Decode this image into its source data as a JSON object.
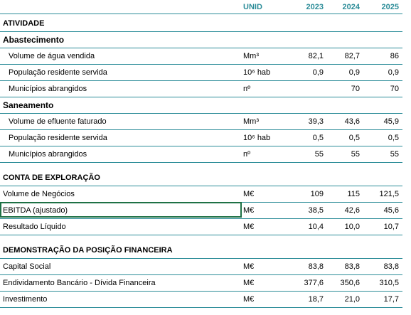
{
  "header": {
    "unit": "UNID",
    "years": [
      "2023",
      "2024",
      "2025"
    ]
  },
  "sections": [
    {
      "title": "ATIVIDADE",
      "groups": [
        {
          "title": "Abastecimento",
          "rows": [
            {
              "label": "Volume de água vendida",
              "unit": "Mm³",
              "values": [
                "82,1",
                "82,7",
                "86"
              ]
            },
            {
              "label": "População residente servida",
              "unit": "10⁶ hab",
              "values": [
                "0,9",
                "0,9",
                "0,9"
              ]
            },
            {
              "label": "Municípios abrangidos",
              "unit": "nº",
              "values": [
                null,
                "70",
                "70"
              ]
            }
          ]
        },
        {
          "title": "Saneamento",
          "rows": [
            {
              "label": "Volume de efluente faturado",
              "unit": "Mm³",
              "values": [
                "39,3",
                "43,6",
                "45,9"
              ]
            },
            {
              "label": "População residente servida",
              "unit": "10⁶ hab",
              "values": [
                "0,5",
                "0,5",
                "0,5"
              ]
            },
            {
              "label": "Municípios abrangidos",
              "unit": "nº",
              "values": [
                "55",
                "55",
                "55"
              ]
            }
          ]
        }
      ]
    },
    {
      "title": "CONTA DE EXPLORAÇÃO",
      "rows": [
        {
          "label": "Volume de Negócios",
          "unit": "M€",
          "values": [
            "109",
            "115",
            "121,5"
          ]
        },
        {
          "label": "EBITDA (ajustado)",
          "unit": "M€",
          "values": [
            "38,5",
            "42,6",
            "45,6"
          ]
        },
        {
          "label": "Resultado Líquido",
          "unit": "M€",
          "values": [
            "10,4",
            "10,0",
            "10,7"
          ]
        }
      ]
    },
    {
      "title": "DEMONSTRAÇÃO DA POSIÇÃO FINANCEIRA",
      "rows": [
        {
          "label": "Capital Social",
          "unit": "M€",
          "values": [
            "83,8",
            "83,8",
            "83,8"
          ]
        },
        {
          "label": "Endividamento Bancário - Dívida Financeira",
          "unit": "M€",
          "values": [
            "377,6",
            "350,6",
            "310,5"
          ]
        },
        {
          "label": "Investimento",
          "unit": "M€",
          "values": [
            "18,7",
            "21,0",
            "17,7"
          ]
        }
      ]
    }
  ]
}
